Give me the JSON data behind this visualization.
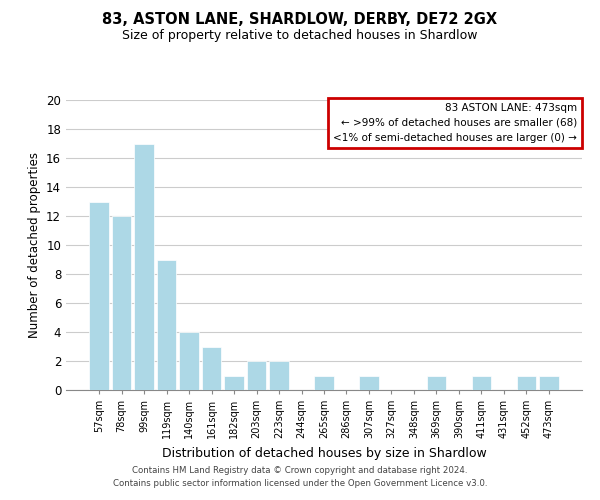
{
  "title": "83, ASTON LANE, SHARDLOW, DERBY, DE72 2GX",
  "subtitle": "Size of property relative to detached houses in Shardlow",
  "xlabel": "Distribution of detached houses by size in Shardlow",
  "ylabel": "Number of detached properties",
  "footer_line1": "Contains HM Land Registry data © Crown copyright and database right 2024.",
  "footer_line2": "Contains public sector information licensed under the Open Government Licence v3.0.",
  "bar_labels": [
    "57sqm",
    "78sqm",
    "99sqm",
    "119sqm",
    "140sqm",
    "161sqm",
    "182sqm",
    "203sqm",
    "223sqm",
    "244sqm",
    "265sqm",
    "286sqm",
    "307sqm",
    "327sqm",
    "348sqm",
    "369sqm",
    "390sqm",
    "411sqm",
    "431sqm",
    "452sqm",
    "473sqm"
  ],
  "bar_values": [
    13,
    12,
    17,
    9,
    4,
    3,
    1,
    2,
    2,
    0,
    1,
    0,
    1,
    0,
    0,
    1,
    0,
    1,
    0,
    1,
    1
  ],
  "bar_color": "#add8e6",
  "ylim": [
    0,
    20
  ],
  "yticks": [
    0,
    2,
    4,
    6,
    8,
    10,
    12,
    14,
    16,
    18,
    20
  ],
  "legend_title": "83 ASTON LANE: 473sqm",
  "legend_line1": "← >99% of detached houses are smaller (68)",
  "legend_line2": "<1% of semi-detached houses are larger (0) →",
  "legend_box_edge_color": "#cc0000",
  "grid_color": "#cccccc",
  "background_color": "#ffffff"
}
